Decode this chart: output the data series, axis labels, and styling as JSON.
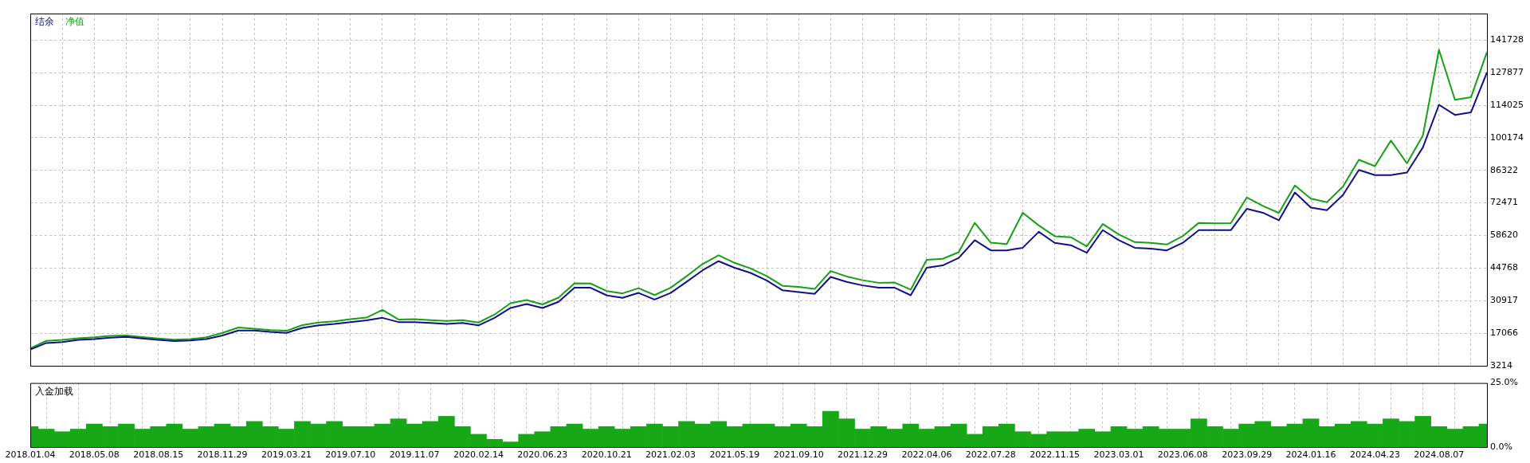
{
  "chart_data": [
    {
      "type": "line",
      "legend": "top left",
      "grid": true,
      "tick_labels": "y",
      "categories": [
        "2018.01.04",
        null,
        null,
        null,
        "2018.05.08",
        null,
        null,
        null,
        "2018.08.15",
        null,
        null,
        null,
        "2018.11.29",
        null,
        null,
        null,
        "2019.03.21",
        null,
        null,
        null,
        "2019.07.10",
        null,
        null,
        null,
        "2019.11.07",
        null,
        null,
        null,
        "2020.02.14",
        null,
        null,
        null,
        "2020.06.23",
        null,
        null,
        null,
        "2020.10.21",
        null,
        null,
        null,
        "2021.02.03",
        null,
        null,
        null,
        "2021.05.19",
        null,
        null,
        null,
        "2021.09.10",
        null,
        null,
        null,
        "2021.12.29",
        null,
        null,
        null,
        "2022.04.06",
        null,
        null,
        null,
        "2022.07.28",
        null,
        null,
        null,
        "2022.11.15",
        null,
        null,
        null,
        "2023.03.01",
        null,
        null,
        null,
        "2023.06.08",
        null,
        null,
        null,
        "2023.09.29",
        null,
        null,
        null,
        "2024.01.16",
        null,
        null,
        null,
        "2024.04.23",
        null,
        null,
        null,
        "2024.08.07",
        null,
        null,
        null
      ],
      "ylim": [
        3214,
        153000
      ],
      "yticks": [
        3214,
        17066,
        30917,
        44768,
        58620,
        72471,
        86322,
        100174,
        114025,
        127877,
        141728
      ],
      "series": [
        {
          "name": "结余",
          "color": "#10108c",
          "values": [
            10100,
            12900,
            13300,
            14200,
            14600,
            15200,
            15500,
            14800,
            14200,
            13700,
            14000,
            14600,
            16100,
            18200,
            18200,
            17600,
            17200,
            19300,
            20400,
            21000,
            21800,
            22500,
            23600,
            21800,
            21800,
            21400,
            21000,
            21400,
            20400,
            23600,
            27800,
            29500,
            27800,
            30400,
            36400,
            36400,
            33200,
            32100,
            34200,
            31400,
            34200,
            38900,
            43800,
            47700,
            44900,
            42700,
            39500,
            35300,
            34600,
            33800,
            41000,
            38900,
            37400,
            36400,
            36400,
            33200,
            44900,
            45900,
            49100,
            56600,
            52300,
            52300,
            53400,
            60200,
            55500,
            54500,
            51300,
            60900,
            56600,
            53400,
            53000,
            52300,
            55500,
            60900,
            60900,
            60900,
            70000,
            68300,
            65100,
            76900,
            70500,
            69400,
            75800,
            86500,
            84300,
            84300,
            85400,
            96100,
            114200,
            109900,
            111000,
            128000
          ]
        },
        {
          "name": "净值",
          "color": "#16a016",
          "values": [
            10600,
            13800,
            14200,
            14900,
            15300,
            15900,
            16100,
            15400,
            14800,
            14300,
            14600,
            15300,
            17200,
            19500,
            19000,
            18400,
            18100,
            20500,
            21600,
            22100,
            23000,
            23700,
            27000,
            22900,
            23000,
            22600,
            22300,
            22600,
            21600,
            25000,
            29800,
            31200,
            29300,
            32200,
            38300,
            38200,
            35000,
            34000,
            36200,
            33300,
            36400,
            41300,
            46500,
            50200,
            47000,
            44600,
            41400,
            37200,
            36800,
            35900,
            43500,
            41200,
            39600,
            38500,
            38600,
            35600,
            48300,
            48700,
            51500,
            64000,
            55600,
            55000,
            68300,
            62900,
            58300,
            57900,
            54000,
            63500,
            59100,
            55800,
            55500,
            54800,
            58400,
            64000,
            63800,
            63900,
            74800,
            71200,
            68200,
            79900,
            74300,
            72800,
            79400,
            90800,
            88100,
            99000,
            89300,
            101200,
            137600,
            116300,
            117400,
            136600
          ]
        }
      ]
    },
    {
      "type": "bar",
      "title": "入金加载",
      "grid": "x",
      "color": "#16a816",
      "categories": [
        "2018.01.04",
        null,
        null,
        null,
        "2018.05.08",
        null,
        null,
        null,
        "2018.08.15",
        null,
        null,
        null,
        "2018.11.29",
        null,
        null,
        null,
        "2019.03.21",
        null,
        null,
        null,
        "2019.07.10",
        null,
        null,
        null,
        "2019.11.07",
        null,
        null,
        null,
        "2020.02.14",
        null,
        null,
        null,
        "2020.06.23",
        null,
        null,
        null,
        "2020.10.21",
        null,
        null,
        null,
        "2021.02.03",
        null,
        null,
        null,
        "2021.05.19",
        null,
        null,
        null,
        "2021.09.10",
        null,
        null,
        null,
        "2021.12.29",
        null,
        null,
        null,
        "2022.04.06",
        null,
        null,
        null,
        "2022.07.28",
        null,
        null,
        null,
        "2022.11.15",
        null,
        null,
        null,
        "2023.03.01",
        null,
        null,
        null,
        "2023.06.08",
        null,
        null,
        null,
        "2023.09.29",
        null,
        null,
        null,
        "2024.01.16",
        null,
        null,
        null,
        "2024.04.23",
        null,
        null,
        null,
        "2024.08.07",
        null,
        null,
        null
      ],
      "ylim": [
        0,
        25
      ],
      "yticks": [
        {
          "value": 0,
          "label": "0.0%"
        },
        {
          "value": 25,
          "label": "25.0%"
        }
      ],
      "values": [
        8,
        7,
        6,
        7,
        9,
        8,
        9,
        7,
        8,
        9,
        7,
        8,
        9,
        8,
        10,
        8,
        7,
        10,
        9,
        10,
        8,
        8,
        9,
        11,
        9,
        10,
        12,
        8,
        5,
        3,
        2,
        5,
        6,
        8,
        9,
        7,
        8,
        7,
        8,
        9,
        8,
        10,
        9,
        10,
        8,
        9,
        9,
        8,
        9,
        8,
        14,
        11,
        7,
        8,
        7,
        9,
        7,
        8,
        9,
        5,
        8,
        9,
        6,
        5,
        6,
        6,
        7,
        6,
        8,
        7,
        8,
        7,
        7,
        11,
        8,
        7,
        9,
        10,
        8,
        9,
        11,
        8,
        9,
        10,
        9,
        11,
        10,
        12,
        8,
        7,
        8,
        9
      ]
    }
  ]
}
